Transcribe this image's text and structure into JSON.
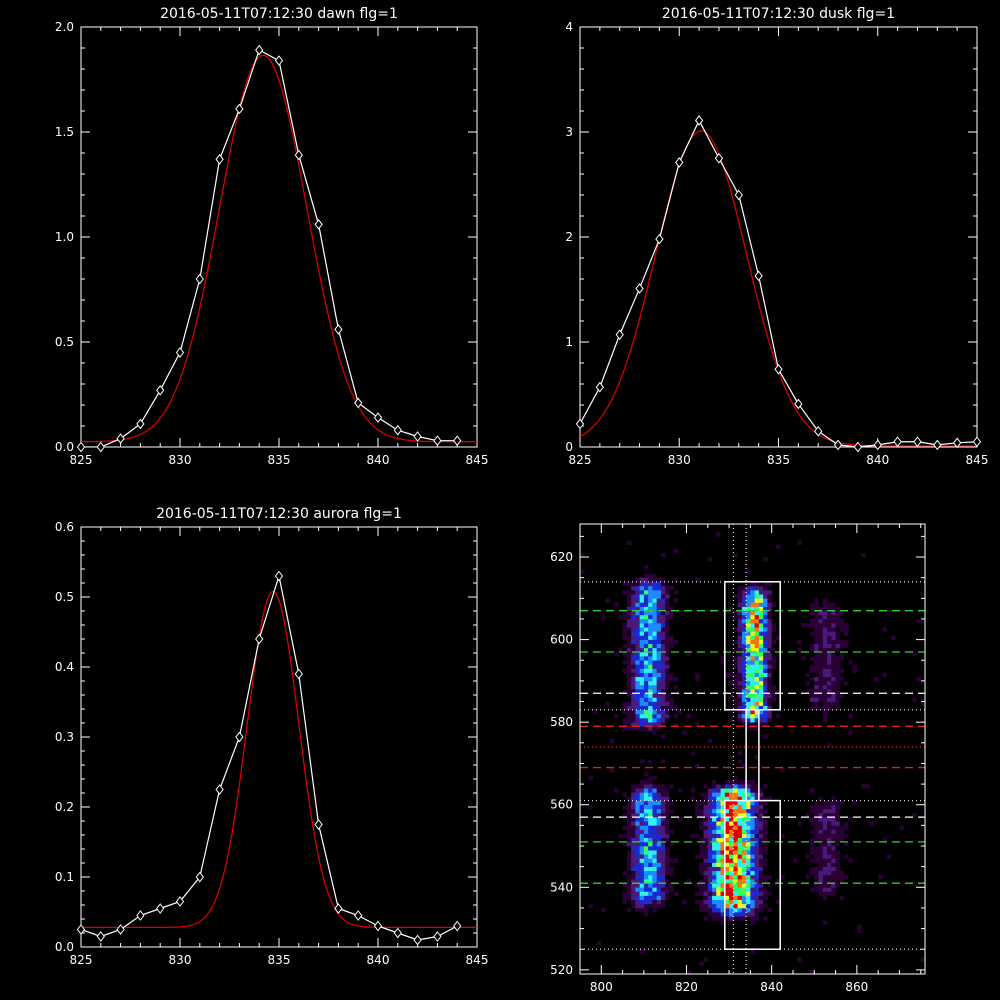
{
  "chart_data": [
    {
      "type": "line",
      "title": "2016-05-11T07:12:30 dawn flg=1",
      "xlim": [
        825,
        845
      ],
      "ylim": [
        0,
        2.0
      ],
      "xticks": [
        825,
        830,
        835,
        840,
        845
      ],
      "yticks": [
        0.0,
        0.5,
        1.0,
        1.5,
        2.0
      ],
      "ytick_labels": [
        "0.0",
        "0.5",
        "1.0",
        "1.5",
        "2.0"
      ],
      "series": [
        {
          "color": "#ffffff",
          "marker": "diamond",
          "x": [
            825,
            826,
            827,
            828,
            829,
            830,
            831,
            832,
            833,
            834,
            835,
            836,
            837,
            838,
            839,
            840,
            841,
            842,
            843,
            844
          ],
          "y": [
            0.0,
            0.0,
            0.04,
            0.11,
            0.27,
            0.45,
            0.8,
            1.37,
            1.61,
            1.89,
            1.84,
            1.39,
            1.06,
            0.56,
            0.21,
            0.14,
            0.08,
            0.05,
            0.03,
            0.03
          ]
        },
        {
          "color": "#e00000",
          "fit": "gaussian",
          "amp": 1.84,
          "center": 834.2,
          "sigma": 2.2,
          "offset": 0.025
        }
      ]
    },
    {
      "type": "line",
      "title": "2016-05-11T07:12:30 dusk flg=1",
      "xlim": [
        825,
        845
      ],
      "ylim": [
        0,
        4
      ],
      "xticks": [
        825,
        830,
        835,
        840,
        845
      ],
      "yticks": [
        0,
        1,
        2,
        3,
        4
      ],
      "ytick_labels": [
        "0",
        "1",
        "2",
        "3",
        "4"
      ],
      "series": [
        {
          "color": "#ffffff",
          "marker": "diamond",
          "x": [
            825,
            826,
            827,
            828,
            829,
            830,
            831,
            832,
            833,
            834,
            835,
            836,
            837,
            838,
            839,
            840,
            841,
            842,
            843,
            844,
            845
          ],
          "y": [
            0.22,
            0.57,
            1.07,
            1.51,
            1.98,
            2.71,
            3.11,
            2.75,
            2.4,
            1.63,
            0.74,
            0.41,
            0.15,
            0.02,
            0.0,
            0.02,
            0.05,
            0.05,
            0.02,
            0.04,
            0.05
          ]
        },
        {
          "color": "#e00000",
          "fit": "gaussian",
          "amp": 3.0,
          "center": 831.1,
          "sigma": 2.3,
          "offset": 0.01
        }
      ]
    },
    {
      "type": "line",
      "title": "2016-05-11T07:12:30 aurora flg=1",
      "xlim": [
        825,
        845
      ],
      "ylim": [
        0,
        0.6
      ],
      "xticks": [
        825,
        830,
        835,
        840,
        845
      ],
      "yticks": [
        0.0,
        0.1,
        0.2,
        0.3,
        0.4,
        0.5,
        0.6
      ],
      "ytick_labels": [
        "0.0",
        "0.1",
        "0.2",
        "0.3",
        "0.4",
        "0.5",
        "0.6"
      ],
      "series": [
        {
          "color": "#ffffff",
          "marker": "diamond",
          "x": [
            825,
            826,
            827,
            828,
            829,
            830,
            831,
            832,
            833,
            834,
            835,
            836,
            837,
            838,
            839,
            840,
            841,
            842,
            843,
            844
          ],
          "y": [
            0.025,
            0.015,
            0.025,
            0.045,
            0.055,
            0.065,
            0.1,
            0.225,
            0.3,
            0.44,
            0.53,
            0.39,
            0.175,
            0.055,
            0.045,
            0.03,
            0.02,
            0.01,
            0.015,
            0.03
          ]
        },
        {
          "color": "#e00000",
          "fit": "gaussian",
          "amp": 0.48,
          "center": 834.7,
          "sigma": 1.3,
          "offset": 0.028
        }
      ]
    },
    {
      "type": "heatmap",
      "xlim": [
        795,
        876
      ],
      "ylim": [
        519,
        628
      ],
      "xticks": [
        800,
        820,
        840,
        860
      ],
      "yticks": [
        520,
        540,
        560,
        580,
        600,
        620
      ],
      "colormap": [
        "#000000",
        "#2a0036",
        "#4a1a7a",
        "#1a2ad0",
        "#1a8cff",
        "#30f0f0",
        "#30ff60",
        "#e8ff20",
        "#ff7010",
        "#e00000"
      ],
      "emission_bands": [
        {
          "x_center": 811,
          "x_width": 4,
          "y_ranges": [
            [
              581,
              611
            ],
            [
              538,
              561
            ]
          ],
          "peak": 0.55
        },
        {
          "x_center": 831,
          "x_width": 5,
          "y_ranges": [
            [
              536,
              561
            ]
          ],
          "peak": 1.0
        },
        {
          "x_center": 836,
          "x_width": 3,
          "y_ranges": [
            [
              582,
              609
            ]
          ],
          "peak": 0.8
        },
        {
          "x_center": 853,
          "x_width": 4,
          "y_ranges": [
            [
              585,
              606
            ],
            [
              540,
              558
            ]
          ],
          "peak": 0.2
        }
      ],
      "boxes": [
        {
          "x": [
            829,
            842
          ],
          "y": [
            525,
            561
          ]
        },
        {
          "x": [
            829,
            842
          ],
          "y": [
            583,
            614
          ]
        }
      ],
      "connector_x": [
        834,
        837
      ],
      "vertical_dotted_x": [
        831,
        834
      ],
      "h_dotted_white_y": [
        525,
        561,
        583,
        614
      ],
      "h_dotted_red_y": [
        574
      ],
      "h_dashed_white_y": [
        557,
        587
      ],
      "h_dashed_green_y": [
        541,
        551,
        597,
        607
      ],
      "h_dashed_red_y": [
        569,
        579
      ]
    }
  ]
}
